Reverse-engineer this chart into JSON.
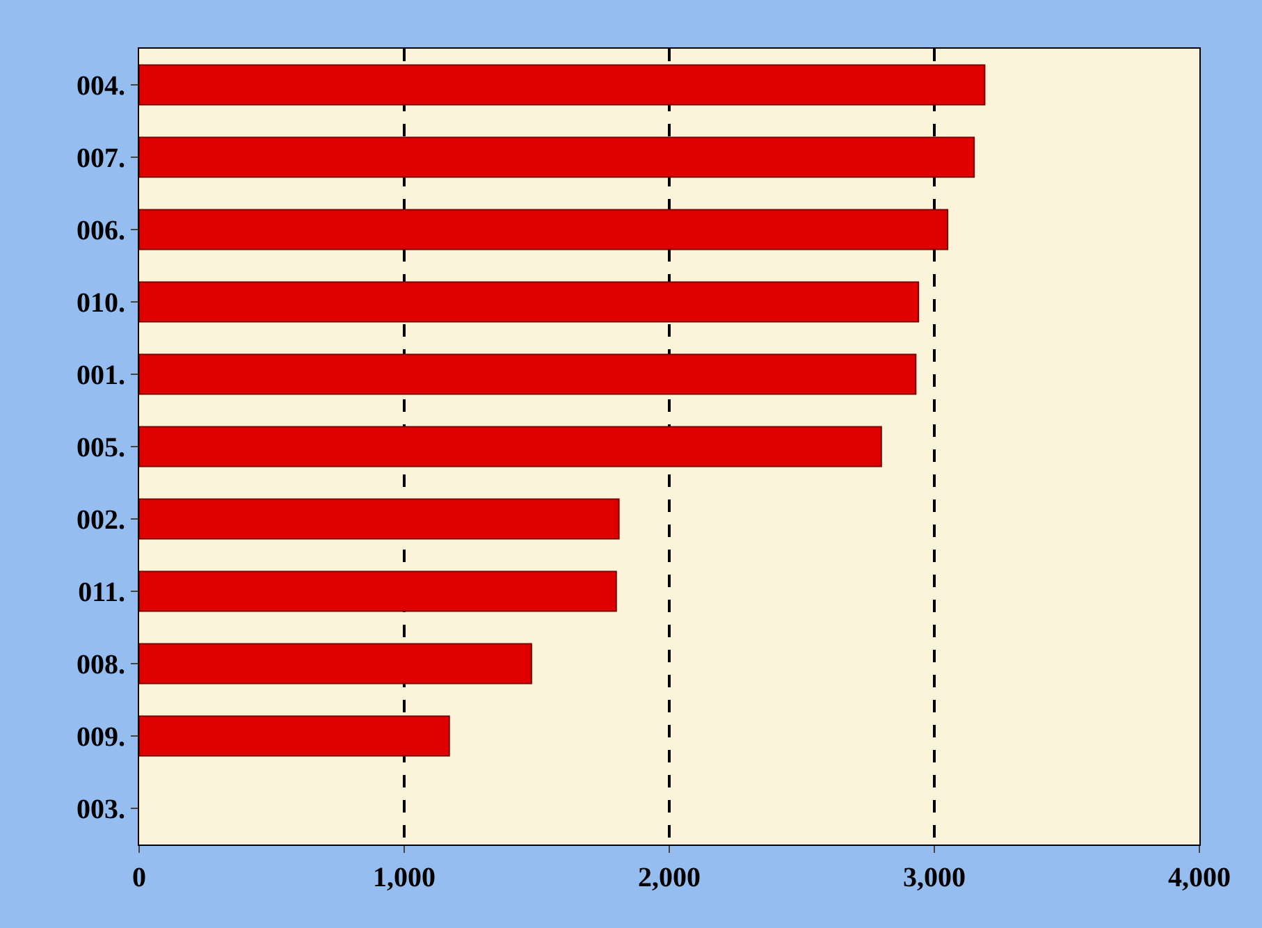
{
  "chart_data": {
    "type": "bar",
    "orientation": "horizontal",
    "categories": [
      "004.",
      "007.",
      "006.",
      "010.",
      "001.",
      "005.",
      "002.",
      "011.",
      "008.",
      "009.",
      "003."
    ],
    "values": [
      3190,
      3150,
      3050,
      2940,
      2930,
      2800,
      1810,
      1800,
      1480,
      1170,
      null
    ],
    "color": "#e00000",
    "xlim": [
      0,
      4000
    ],
    "xticks": [
      {
        "value": 0,
        "label": "0"
      },
      {
        "value": 1000,
        "label": "1,000"
      },
      {
        "value": 2000,
        "label": "2,000"
      },
      {
        "value": 3000,
        "label": "3,000"
      },
      {
        "value": 4000,
        "label": "4,000"
      }
    ],
    "grid": "x"
  }
}
